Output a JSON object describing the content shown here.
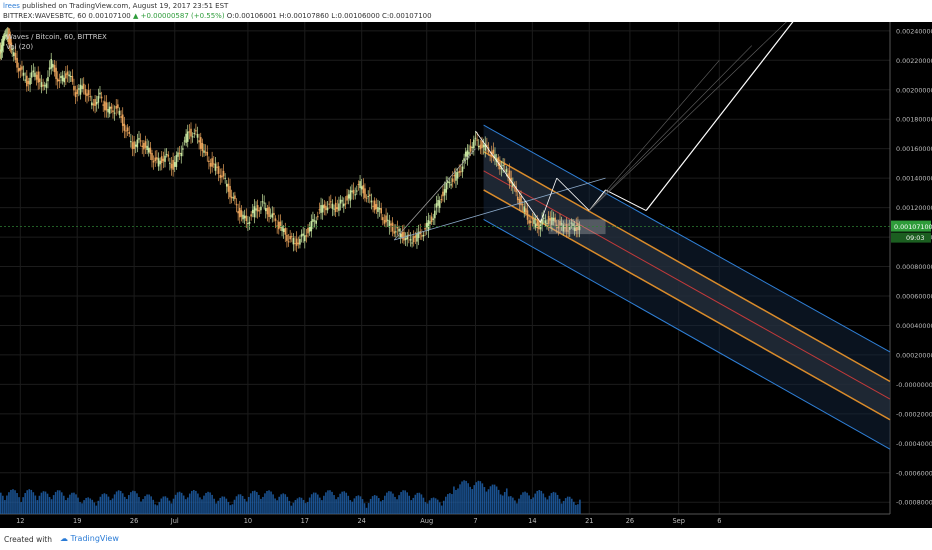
{
  "header": {
    "user": "lrees",
    "published_text": "published on TradingView.com, August 19, 2017 23:51 EST",
    "symbol": "BITTREX:WAVESBTC, 60",
    "price": "0.00107100",
    "change": "+0.00000587 (+0.55%)",
    "ohlc": "O:0.00106001 H:0.00107860 L:0.00106000 C:0.00107100"
  },
  "legend": {
    "title": "Waves / Bitcoin, 60, BITTREX",
    "volume": "Vol (20)"
  },
  "footer": {
    "created_with": "Created with",
    "brand": "TradingView"
  },
  "colors": {
    "background": "#000000",
    "candle_up": "#c8e6a0",
    "candle_down": "#e8a25a",
    "channel_blue": "#2f7fd6",
    "channel_orange": "#d98b2b",
    "channel_red": "#c23a3a",
    "volume": "#1e5fa8",
    "last_price_tag": "#2e9c3a"
  },
  "chart_data": {
    "type": "candlestick",
    "ylim": [
      -0.00088,
      0.00246
    ],
    "y_ticks": [
      "0.00240000",
      "0.00220000",
      "0.00200000",
      "0.00180000",
      "0.00160000",
      "0.00140000",
      "0.00120000",
      "0.00100000",
      "0.00080000",
      "0.00060000",
      "0.00040000",
      "0.00020000",
      "-0.00000000",
      "-0.00020000",
      "-0.00040000",
      "-0.00060000",
      "-0.00080000"
    ],
    "y_tick_values": [
      0.0024,
      0.0022,
      0.002,
      0.0018,
      0.0016,
      0.0014,
      0.0012,
      0.001,
      0.0008,
      0.0006,
      0.0004,
      0.0002,
      0,
      -0.0002,
      -0.0004,
      -0.0006,
      -0.0008
    ],
    "x_ticks": [
      "12",
      "19",
      "26",
      "Jul",
      "10",
      "17",
      "24",
      "Aug",
      "7",
      "14",
      "21",
      "26",
      "Sep",
      "6"
    ],
    "x_tick_days": [
      0,
      7,
      14,
      19,
      28,
      35,
      42,
      50,
      56,
      63,
      70,
      75,
      81,
      86
    ],
    "x_range_days": [
      -2.5,
      107
    ],
    "last_price_label": "0.00107100",
    "countdown_label": "09:03",
    "price_path": [
      [
        -2.5,
        0.00225
      ],
      [
        -2,
        0.00232
      ],
      [
        -1.5,
        0.0024
      ],
      [
        -1,
        0.00228
      ],
      [
        0,
        0.00215
      ],
      [
        1,
        0.00205
      ],
      [
        2,
        0.00212
      ],
      [
        3,
        0.002
      ],
      [
        4,
        0.00218
      ],
      [
        5,
        0.00205
      ],
      [
        6,
        0.00212
      ],
      [
        7,
        0.00198
      ],
      [
        8,
        0.00202
      ],
      [
        9,
        0.0019
      ],
      [
        10,
        0.00195
      ],
      [
        11,
        0.00185
      ],
      [
        12,
        0.00188
      ],
      [
        13,
        0.00175
      ],
      [
        14,
        0.00162
      ],
      [
        15,
        0.00165
      ],
      [
        16,
        0.00158
      ],
      [
        17,
        0.0015
      ],
      [
        18,
        0.00155
      ],
      [
        19,
        0.00148
      ],
      [
        20,
        0.0016
      ],
      [
        21,
        0.00172
      ],
      [
        22,
        0.00168
      ],
      [
        23,
        0.00155
      ],
      [
        24,
        0.00148
      ],
      [
        25,
        0.00142
      ],
      [
        26,
        0.0013
      ],
      [
        27,
        0.00118
      ],
      [
        28,
        0.0011
      ],
      [
        29,
        0.00118
      ],
      [
        30,
        0.00122
      ],
      [
        31,
        0.00115
      ],
      [
        32,
        0.00108
      ],
      [
        33,
        0.001
      ],
      [
        34,
        0.00096
      ],
      [
        35,
        0.001
      ],
      [
        36,
        0.00108
      ],
      [
        37,
        0.00118
      ],
      [
        38,
        0.00122
      ],
      [
        39,
        0.0012
      ],
      [
        40,
        0.00124
      ],
      [
        41,
        0.0013
      ],
      [
        42,
        0.00135
      ],
      [
        43,
        0.00126
      ],
      [
        44,
        0.0012
      ],
      [
        45,
        0.00112
      ],
      [
        46,
        0.00106
      ],
      [
        47,
        0.00102
      ],
      [
        48,
        0.00098
      ],
      [
        49,
        0.001
      ],
      [
        50,
        0.00105
      ],
      [
        51,
        0.00115
      ],
      [
        52,
        0.00128
      ],
      [
        53,
        0.00138
      ],
      [
        54,
        0.00142
      ],
      [
        55,
        0.00155
      ],
      [
        56,
        0.00165
      ],
      [
        57,
        0.00162
      ],
      [
        58,
        0.00158
      ],
      [
        59,
        0.0015
      ],
      [
        60,
        0.00145
      ],
      [
        61,
        0.00132
      ],
      [
        62,
        0.0012
      ],
      [
        63,
        0.0011
      ],
      [
        64,
        0.00108
      ],
      [
        65,
        0.00112
      ],
      [
        66,
        0.0011
      ],
      [
        67,
        0.00106
      ],
      [
        68,
        0.00107
      ],
      [
        69,
        0.00107
      ]
    ]
  }
}
